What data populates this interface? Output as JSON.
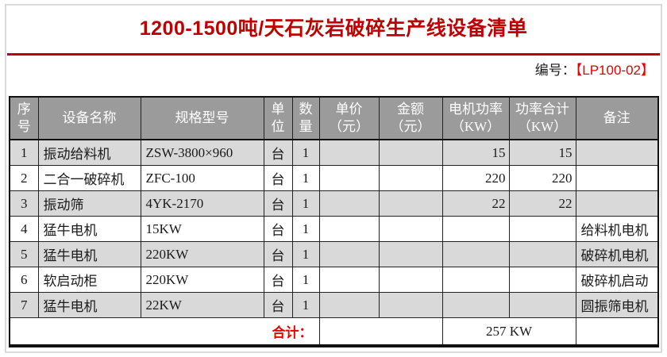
{
  "page": {
    "title": "1200-1500吨/天石灰岩破碎生产线设备清单",
    "doc_no": {
      "label": "编号：",
      "value": "【LP100-02】"
    }
  },
  "colors": {
    "title_red": "#c00000",
    "accent_red": "#e60000",
    "header_bg": "#9b9b9b",
    "alt_row_bg": "#d9d9d9"
  },
  "table": {
    "headers": [
      {
        "label": "序\n号"
      },
      {
        "label": "设备名称"
      },
      {
        "label": "规格型号"
      },
      {
        "label": "单\n位"
      },
      {
        "label": "数\n量"
      },
      {
        "label": "单价\n（元）"
      },
      {
        "label": "金额\n（元）"
      },
      {
        "label": "电机功率\n（KW）"
      },
      {
        "label": "功率合计\n（KW）"
      },
      {
        "label": "备注"
      }
    ],
    "rows": [
      {
        "no": "1",
        "name": "振动给料机",
        "model": "ZSW-3800×960",
        "unit": "台",
        "qty": "1",
        "unit_price": "",
        "amount": "",
        "motor_kw": "15",
        "total_kw": "15",
        "remark": ""
      },
      {
        "no": "2",
        "name": "二合一破碎机",
        "model": "ZFC-100",
        "unit": "台",
        "qty": "1",
        "unit_price": "",
        "amount": "",
        "motor_kw": "220",
        "total_kw": "220",
        "remark": ""
      },
      {
        "no": "3",
        "name": "振动筛",
        "model": "4YK-2170",
        "unit": "台",
        "qty": "1",
        "unit_price": "",
        "amount": "",
        "motor_kw": "22",
        "total_kw": "22",
        "remark": ""
      },
      {
        "no": "4",
        "name": "猛牛电机",
        "model": "15KW",
        "unit": "台",
        "qty": "1",
        "unit_price": "",
        "amount": "",
        "motor_kw": "",
        "total_kw": "",
        "remark": "给料机电机"
      },
      {
        "no": "5",
        "name": "猛牛电机",
        "model": "220KW",
        "unit": "台",
        "qty": "1",
        "unit_price": "",
        "amount": "",
        "motor_kw": "",
        "total_kw": "",
        "remark": "破碎机电机"
      },
      {
        "no": "6",
        "name": "软启动柜",
        "model": "220KW",
        "unit": "台",
        "qty": "1",
        "unit_price": "",
        "amount": "",
        "motor_kw": "",
        "total_kw": "",
        "remark": "破碎机启动"
      },
      {
        "no": "7",
        "name": "猛牛电机",
        "model": "22KW",
        "unit": "台",
        "qty": "1",
        "unit_price": "",
        "amount": "",
        "motor_kw": "",
        "total_kw": "",
        "remark": "圆振筛电机"
      }
    ],
    "footer": {
      "total_label": "合计：",
      "total_value": "257 KW"
    }
  }
}
